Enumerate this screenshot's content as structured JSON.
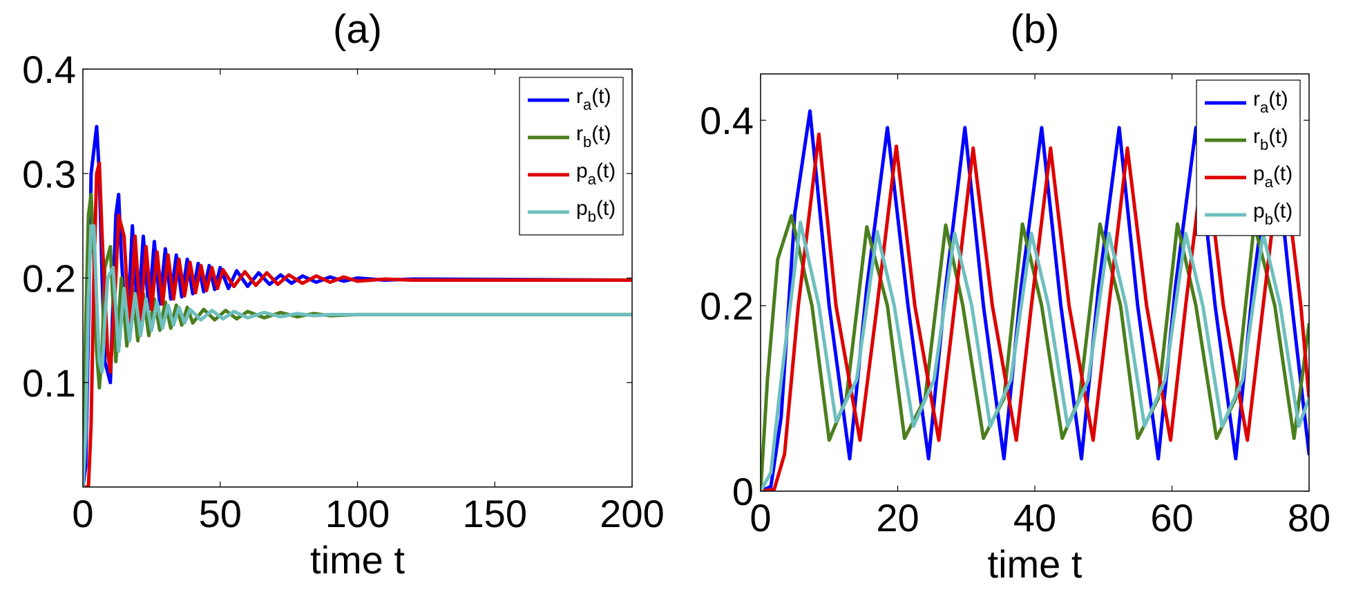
{
  "chart_data": [
    {
      "type": "line",
      "title": "(a)",
      "xlabel": "time t",
      "ylabel": "",
      "xlim": [
        0,
        200
      ],
      "ylim": [
        0,
        0.4
      ],
      "xticks": [
        0,
        50,
        100,
        150,
        200
      ],
      "xtick_labels": [
        "0",
        "50",
        "100",
        "150",
        "200"
      ],
      "yticks": [
        0.1,
        0.2,
        0.3,
        0.4
      ],
      "ytick_labels": [
        "0.1",
        "0.2",
        "0.3",
        "0.4"
      ],
      "grid": false,
      "legend_position": "top-right",
      "series": [
        {
          "label": "r",
          "sub": "a",
          "suffix": "(t)",
          "color": "#0000ff",
          "x": [
            0,
            1,
            2,
            3,
            5,
            6,
            7,
            8,
            10,
            11,
            12,
            13,
            14,
            16,
            18,
            20,
            22,
            24,
            26,
            28,
            30,
            32,
            34,
            36,
            38,
            40,
            42,
            44,
            46,
            48,
            50,
            53,
            56,
            60,
            64,
            68,
            72,
            76,
            80,
            85,
            90,
            95,
            100,
            110,
            120,
            200
          ],
          "y": [
            0,
            0.02,
            0.15,
            0.3,
            0.345,
            0.3,
            0.2,
            0.12,
            0.1,
            0.18,
            0.26,
            0.28,
            0.22,
            0.14,
            0.25,
            0.16,
            0.24,
            0.17,
            0.235,
            0.175,
            0.228,
            0.18,
            0.222,
            0.182,
            0.218,
            0.185,
            0.214,
            0.187,
            0.212,
            0.189,
            0.21,
            0.19,
            0.207,
            0.192,
            0.205,
            0.194,
            0.203,
            0.195,
            0.202,
            0.196,
            0.201,
            0.197,
            0.2,
            0.198,
            0.199,
            0.198
          ]
        },
        {
          "label": "r",
          "sub": "b",
          "suffix": "(t)",
          "color": "#4a7e1e",
          "x": [
            0,
            1,
            2,
            3,
            4,
            5,
            6,
            7,
            8,
            10,
            12,
            14,
            16,
            18,
            20,
            22,
            24,
            26,
            28,
            30,
            32,
            34,
            36,
            38,
            40,
            44,
            48,
            52,
            56,
            60,
            66,
            72,
            78,
            84,
            90,
            100,
            110,
            200
          ],
          "y": [
            0,
            0.15,
            0.26,
            0.28,
            0.22,
            0.13,
            0.095,
            0.13,
            0.21,
            0.23,
            0.12,
            0.2,
            0.135,
            0.19,
            0.14,
            0.185,
            0.145,
            0.18,
            0.15,
            0.177,
            0.152,
            0.174,
            0.155,
            0.172,
            0.157,
            0.17,
            0.16,
            0.169,
            0.161,
            0.168,
            0.162,
            0.167,
            0.163,
            0.166,
            0.164,
            0.165,
            0.165,
            0.165
          ]
        },
        {
          "label": "p",
          "sub": "a",
          "suffix": "(t)",
          "color": "#dd0000",
          "x": [
            0,
            2,
            3,
            4,
            5,
            6,
            7,
            9,
            10,
            12,
            13,
            15,
            17,
            19,
            21,
            23,
            25,
            27,
            29,
            31,
            33,
            35,
            37,
            39,
            41,
            43,
            45,
            47,
            49,
            51,
            55,
            59,
            63,
            67,
            71,
            75,
            80,
            85,
            90,
            95,
            100,
            110,
            120,
            200
          ],
          "y": [
            0,
            0.0,
            0.06,
            0.2,
            0.3,
            0.31,
            0.24,
            0.13,
            0.11,
            0.2,
            0.26,
            0.24,
            0.15,
            0.24,
            0.16,
            0.23,
            0.17,
            0.225,
            0.175,
            0.222,
            0.18,
            0.218,
            0.183,
            0.215,
            0.186,
            0.212,
            0.188,
            0.21,
            0.19,
            0.208,
            0.192,
            0.206,
            0.193,
            0.205,
            0.194,
            0.203,
            0.195,
            0.202,
            0.196,
            0.201,
            0.197,
            0.199,
            0.198,
            0.198
          ]
        },
        {
          "label": "p",
          "sub": "b",
          "suffix": "(t)",
          "color": "#6fbfbf",
          "x": [
            0,
            1,
            2,
            3,
            4,
            5,
            6,
            7,
            8,
            9,
            11,
            13,
            15,
            17,
            19,
            21,
            23,
            25,
            27,
            29,
            31,
            33,
            35,
            37,
            39,
            43,
            47,
            51,
            55,
            60,
            66,
            72,
            78,
            84,
            90,
            100,
            110,
            200
          ],
          "y": [
            0,
            0.05,
            0.18,
            0.25,
            0.25,
            0.18,
            0.12,
            0.11,
            0.16,
            0.2,
            0.21,
            0.13,
            0.19,
            0.14,
            0.185,
            0.145,
            0.18,
            0.15,
            0.177,
            0.152,
            0.174,
            0.155,
            0.172,
            0.157,
            0.17,
            0.16,
            0.169,
            0.161,
            0.168,
            0.162,
            0.167,
            0.163,
            0.166,
            0.164,
            0.165,
            0.165,
            0.165,
            0.165
          ]
        }
      ]
    },
    {
      "type": "line",
      "title": "(b)",
      "xlabel": "time t",
      "ylabel": "",
      "xlim": [
        0,
        80
      ],
      "ylim": [
        0,
        0.45
      ],
      "xticks": [
        0,
        20,
        40,
        60,
        80
      ],
      "xtick_labels": [
        "0",
        "20",
        "40",
        "60",
        "80"
      ],
      "yticks": [
        0,
        0.2,
        0.4
      ],
      "ytick_labels": [
        "0",
        "0.2",
        "0.4"
      ],
      "grid": false,
      "legend_position": "top-right",
      "series": [
        {
          "label": "r",
          "sub": "a",
          "suffix": "(t)",
          "color": "#0000ff",
          "x": [
            0,
            1.5,
            3,
            5,
            7.2,
            10,
            13,
            15.5,
            18.5,
            21.5,
            24.5,
            27,
            29.8,
            32.5,
            35.5,
            38,
            41,
            43.8,
            46.8,
            49.3,
            52.3,
            55,
            58,
            60.5,
            63.5,
            66.3,
            69.3,
            71.8,
            74.8,
            77.5,
            80
          ],
          "y": [
            0,
            0.005,
            0.08,
            0.3,
            0.41,
            0.2,
            0.035,
            0.22,
            0.392,
            0.2,
            0.035,
            0.22,
            0.392,
            0.2,
            0.035,
            0.22,
            0.392,
            0.2,
            0.035,
            0.22,
            0.392,
            0.2,
            0.035,
            0.22,
            0.392,
            0.2,
            0.035,
            0.22,
            0.392,
            0.2,
            0.04
          ]
        },
        {
          "label": "r",
          "sub": "b",
          "suffix": "(t)",
          "color": "#4a7e1e",
          "x": [
            0,
            1,
            2.5,
            4.5,
            7.5,
            10,
            12.5,
            15.5,
            18.5,
            21,
            24,
            27,
            29.5,
            32.5,
            35.5,
            38.2,
            41,
            44,
            46.5,
            49.5,
            52.5,
            55,
            58,
            60.8,
            63.5,
            66.5,
            69.3,
            72,
            75,
            77.8,
            80
          ],
          "y": [
            0,
            0.12,
            0.25,
            0.297,
            0.2,
            0.055,
            0.1,
            0.285,
            0.2,
            0.057,
            0.1,
            0.287,
            0.2,
            0.057,
            0.1,
            0.288,
            0.2,
            0.057,
            0.1,
            0.288,
            0.2,
            0.057,
            0.1,
            0.288,
            0.2,
            0.057,
            0.1,
            0.288,
            0.2,
            0.057,
            0.18
          ]
        },
        {
          "label": "p",
          "sub": "a",
          "suffix": "(t)",
          "color": "#dd0000",
          "x": [
            0,
            2,
            3.5,
            5.5,
            8.5,
            11,
            14.5,
            17,
            19.8,
            22.5,
            26,
            28.3,
            31,
            33.8,
            37.3,
            39.5,
            42.3,
            45,
            48.5,
            50.8,
            53.5,
            56.3,
            59.8,
            62,
            64.8,
            67.5,
            71,
            73.3,
            76,
            78.8,
            80
          ],
          "y": [
            0,
            0.002,
            0.04,
            0.2,
            0.385,
            0.2,
            0.055,
            0.2,
            0.372,
            0.2,
            0.055,
            0.2,
            0.37,
            0.2,
            0.055,
            0.2,
            0.37,
            0.2,
            0.055,
            0.2,
            0.37,
            0.2,
            0.055,
            0.2,
            0.37,
            0.2,
            0.055,
            0.2,
            0.37,
            0.2,
            0.1
          ]
        },
        {
          "label": "p",
          "sub": "b",
          "suffix": "(t)",
          "color": "#6fbfbf",
          "x": [
            0,
            1.5,
            3,
            5.8,
            8.5,
            11,
            14,
            17,
            19.5,
            22.3,
            25.3,
            28.3,
            30.8,
            33.5,
            36.5,
            39.5,
            42,
            44.8,
            47.8,
            50.8,
            53.3,
            56,
            59,
            62,
            64.5,
            67.3,
            70.3,
            73.3,
            75.8,
            78.5,
            80
          ],
          "y": [
            0,
            0.02,
            0.12,
            0.29,
            0.2,
            0.075,
            0.12,
            0.28,
            0.2,
            0.07,
            0.12,
            0.278,
            0.2,
            0.07,
            0.12,
            0.278,
            0.2,
            0.07,
            0.12,
            0.278,
            0.2,
            0.07,
            0.12,
            0.278,
            0.2,
            0.07,
            0.12,
            0.278,
            0.2,
            0.07,
            0.1
          ]
        }
      ]
    }
  ]
}
